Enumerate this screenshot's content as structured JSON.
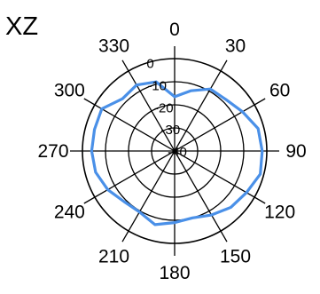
{
  "chart_data": {
    "type": "line",
    "subtype": "polar",
    "title": "XZ",
    "angular_ticks": [
      "0",
      "30",
      "60",
      "90",
      "120",
      "150",
      "180",
      "210",
      "240",
      "270",
      "300",
      "330"
    ],
    "radial_ticks": [
      "0",
      "-10",
      "-20",
      "-30",
      "-40"
    ],
    "rlim": [
      -40,
      0
    ],
    "theta_direction": "clockwise",
    "theta_zero": "top",
    "grid": true,
    "series": [
      {
        "theta": [
          0,
          15,
          30,
          45,
          60,
          75,
          90,
          105,
          120,
          135,
          150,
          165,
          180,
          195,
          210,
          225,
          240,
          255,
          270,
          285,
          300,
          315,
          330,
          345,
          360
        ],
        "r": [
          -16.5,
          -13,
          -9,
          -8.5,
          -6,
          -2.5,
          -2,
          -1.5,
          -4,
          -5.5,
          -8,
          -10,
          -9,
          -7,
          -9.5,
          -9,
          -6.5,
          -4.5,
          -4,
          -4,
          -3.5,
          -8,
          -7,
          -9,
          -16.5
        ]
      }
    ],
    "colors": {
      "series": "#4a90e8",
      "grid": "#000000"
    }
  }
}
